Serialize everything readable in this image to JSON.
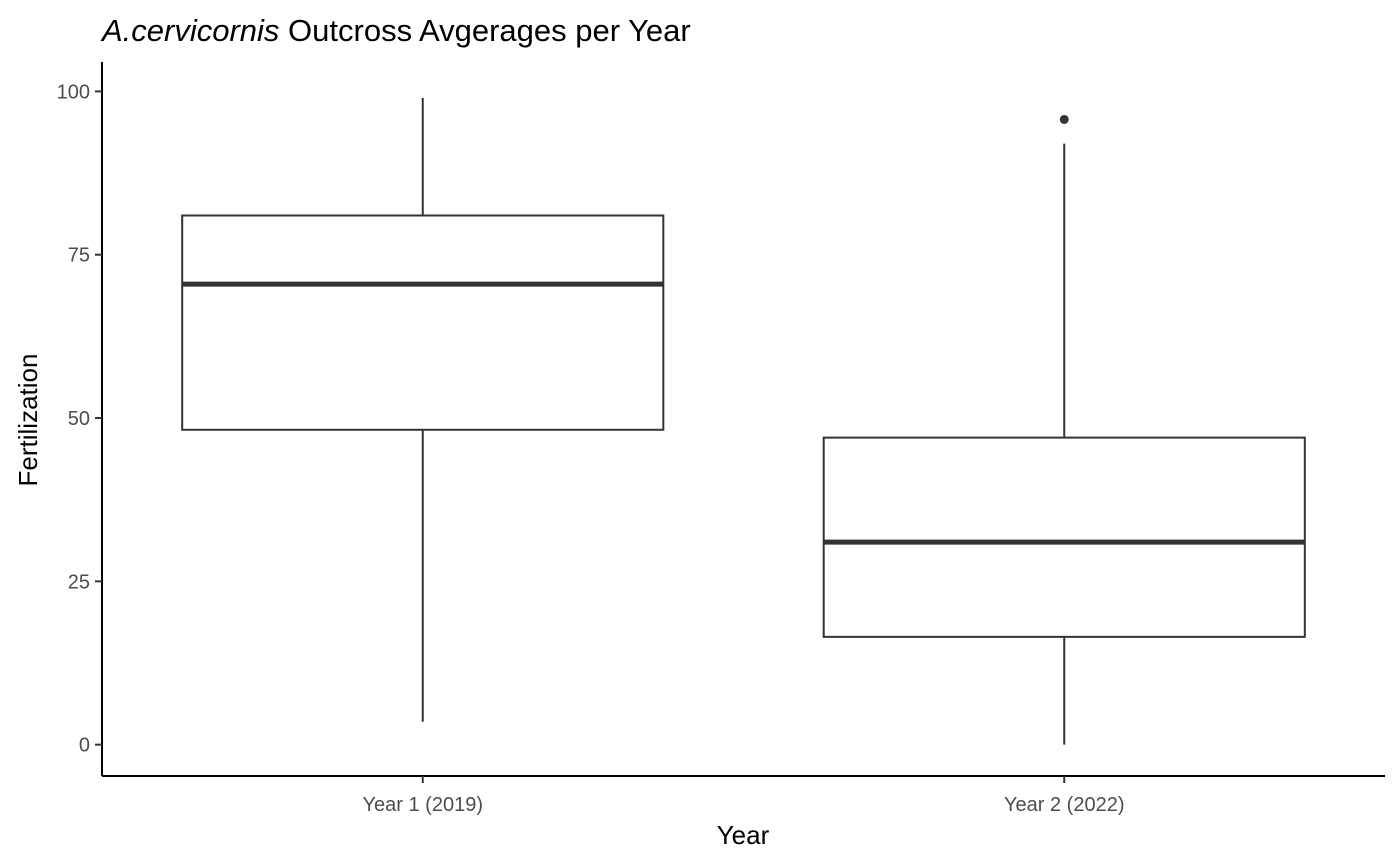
{
  "chart_data": {
    "type": "boxplot",
    "title": {
      "species": "A.cervicornis",
      "rest": "Outcross Avgerages per Year"
    },
    "xlabel": "Year",
    "ylabel": "Fertilization",
    "ylim": [
      -4.8,
      104.5
    ],
    "yticks": [
      0,
      25,
      50,
      75,
      100
    ],
    "categories": [
      "Year 1 (2019)",
      "Year 2 (2022)"
    ],
    "boxes": [
      {
        "category": "Year 1 (2019)",
        "whisker_low": 3.5,
        "q1": 48.2,
        "median": 70.5,
        "q3": 81,
        "whisker_high": 99,
        "outliers": []
      },
      {
        "category": "Year 2 (2022)",
        "whisker_low": 0,
        "q1": 16.5,
        "median": 31,
        "q3": 47,
        "whisker_high": 92,
        "outliers": [
          95.7
        ]
      }
    ],
    "grid": false,
    "legend": "none",
    "colors": {
      "line": "#333333",
      "fill": "#ffffff",
      "axis": "#000000",
      "tick_text": "#4d4d4d"
    }
  }
}
